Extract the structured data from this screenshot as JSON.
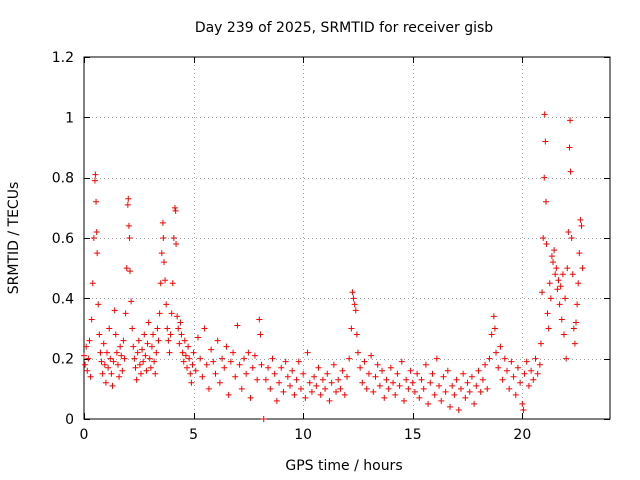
{
  "chart_data": {
    "type": "scatter",
    "title": "Day 239 of 2025, SRMTID for receiver gisb",
    "xlabel": "GPS time / hours",
    "ylabel": "SRMTID / TECUs",
    "xlim": [
      0,
      24
    ],
    "ylim": [
      0,
      1.2
    ],
    "x_ticks": [
      0,
      5,
      10,
      15,
      20
    ],
    "x_tick_labels": [
      "0",
      "5",
      "10",
      "15",
      "20"
    ],
    "y_ticks": [
      0,
      0.2,
      0.4,
      0.6,
      0.8,
      1.0,
      1.2
    ],
    "y_tick_labels": [
      "0",
      "0.2",
      "0.4",
      "0.6",
      "0.8",
      "1",
      "1.2"
    ],
    "grid": true,
    "marker": "+",
    "series": [
      {
        "name": "SRMTID",
        "color": "#ff0000",
        "points": [
          [
            0.0,
            0.21
          ],
          [
            0.05,
            0.18
          ],
          [
            0.1,
            0.24
          ],
          [
            0.15,
            0.16
          ],
          [
            0.2,
            0.2
          ],
          [
            0.25,
            0.26
          ],
          [
            0.3,
            0.14
          ],
          [
            0.35,
            0.33
          ],
          [
            0.4,
            0.45
          ],
          [
            0.45,
            0.6
          ],
          [
            0.5,
            0.79
          ],
          [
            0.52,
            0.81
          ],
          [
            0.55,
            0.72
          ],
          [
            0.58,
            0.62
          ],
          [
            0.6,
            0.55
          ],
          [
            0.65,
            0.38
          ],
          [
            0.7,
            0.28
          ],
          [
            0.75,
            0.22
          ],
          [
            0.8,
            0.19
          ],
          [
            0.85,
            0.15
          ],
          [
            0.9,
            0.25
          ],
          [
            0.95,
            0.18
          ],
          [
            1.0,
            0.12
          ],
          [
            1.05,
            0.22
          ],
          [
            1.1,
            0.17
          ],
          [
            1.15,
            0.3
          ],
          [
            1.2,
            0.2
          ],
          [
            1.25,
            0.15
          ],
          [
            1.3,
            0.11
          ],
          [
            1.35,
            0.19
          ],
          [
            1.4,
            0.36
          ],
          [
            1.45,
            0.28
          ],
          [
            1.5,
            0.22
          ],
          [
            1.55,
            0.18
          ],
          [
            1.6,
            0.14
          ],
          [
            1.65,
            0.24
          ],
          [
            1.7,
            0.21
          ],
          [
            1.75,
            0.16
          ],
          [
            1.8,
            0.26
          ],
          [
            1.85,
            0.2
          ],
          [
            1.9,
            0.35
          ],
          [
            1.95,
            0.5
          ],
          [
            2.0,
            0.71
          ],
          [
            2.02,
            0.73
          ],
          [
            2.05,
            0.64
          ],
          [
            2.08,
            0.6
          ],
          [
            2.1,
            0.49
          ],
          [
            2.15,
            0.39
          ],
          [
            2.2,
            0.3
          ],
          [
            2.25,
            0.24
          ],
          [
            2.3,
            0.2
          ],
          [
            2.35,
            0.17
          ],
          [
            2.4,
            0.13
          ],
          [
            2.45,
            0.22
          ],
          [
            2.5,
            0.26
          ],
          [
            2.55,
            0.18
          ],
          [
            2.6,
            0.15
          ],
          [
            2.65,
            0.23
          ],
          [
            2.7,
            0.19
          ],
          [
            2.75,
            0.28
          ],
          [
            2.8,
            0.21
          ],
          [
            2.85,
            0.16
          ],
          [
            2.9,
            0.25
          ],
          [
            2.95,
            0.32
          ],
          [
            3.0,
            0.2
          ],
          [
            3.05,
            0.17
          ],
          [
            3.1,
            0.24
          ],
          [
            3.15,
            0.28
          ],
          [
            3.2,
            0.19
          ],
          [
            3.25,
            0.15
          ],
          [
            3.3,
            0.22
          ],
          [
            3.35,
            0.3
          ],
          [
            3.4,
            0.26
          ],
          [
            3.45,
            0.35
          ],
          [
            3.5,
            0.45
          ],
          [
            3.55,
            0.55
          ],
          [
            3.6,
            0.65
          ],
          [
            3.62,
            0.6
          ],
          [
            3.65,
            0.52
          ],
          [
            3.7,
            0.46
          ],
          [
            3.75,
            0.38
          ],
          [
            3.8,
            0.3
          ],
          [
            3.85,
            0.26
          ],
          [
            3.9,
            0.22
          ],
          [
            3.95,
            0.28
          ],
          [
            4.0,
            0.35
          ],
          [
            4.05,
            0.45
          ],
          [
            4.1,
            0.6
          ],
          [
            4.15,
            0.7
          ],
          [
            4.18,
            0.69
          ],
          [
            4.2,
            0.58
          ],
          [
            4.25,
            0.34
          ],
          [
            4.3,
            0.3
          ],
          [
            4.35,
            0.25
          ],
          [
            4.4,
            0.32
          ],
          [
            4.45,
            0.28
          ],
          [
            4.5,
            0.22
          ],
          [
            4.55,
            0.19
          ],
          [
            4.6,
            0.26
          ],
          [
            4.65,
            0.21
          ],
          [
            4.7,
            0.17
          ],
          [
            4.75,
            0.24
          ],
          [
            4.8,
            0.2
          ],
          [
            4.85,
            0.15
          ],
          [
            4.9,
            0.12
          ],
          [
            4.95,
            0.18
          ],
          [
            5.0,
            0.22
          ],
          [
            5.1,
            0.16
          ],
          [
            5.2,
            0.27
          ],
          [
            5.3,
            0.2
          ],
          [
            5.4,
            0.14
          ],
          [
            5.5,
            0.3
          ],
          [
            5.6,
            0.18
          ],
          [
            5.7,
            0.1
          ],
          [
            5.8,
            0.23
          ],
          [
            5.9,
            0.19
          ],
          [
            6.0,
            0.15
          ],
          [
            6.1,
            0.26
          ],
          [
            6.2,
            0.12
          ],
          [
            6.3,
            0.2
          ],
          [
            6.4,
            0.17
          ],
          [
            6.5,
            0.24
          ],
          [
            6.6,
            0.08
          ],
          [
            6.7,
            0.19
          ],
          [
            6.8,
            0.22
          ],
          [
            6.9,
            0.14
          ],
          [
            7.0,
            0.31
          ],
          [
            7.1,
            0.18
          ],
          [
            7.2,
            0.1
          ],
          [
            7.3,
            0.2
          ],
          [
            7.4,
            0.15
          ],
          [
            7.5,
            0.22
          ],
          [
            7.6,
            0.07
          ],
          [
            7.7,
            0.17
          ],
          [
            7.8,
            0.21
          ],
          [
            7.9,
            0.13
          ],
          [
            8.0,
            0.33
          ],
          [
            8.05,
            0.28
          ],
          [
            8.1,
            0.18
          ],
          [
            8.2,
            0.0
          ],
          [
            8.3,
            0.13
          ],
          [
            8.4,
            0.17
          ],
          [
            8.5,
            0.1
          ],
          [
            8.6,
            0.2
          ],
          [
            8.7,
            0.15
          ],
          [
            8.8,
            0.06
          ],
          [
            8.9,
            0.12
          ],
          [
            9.0,
            0.17
          ],
          [
            9.1,
            0.09
          ],
          [
            9.2,
            0.19
          ],
          [
            9.3,
            0.14
          ],
          [
            9.4,
            0.11
          ],
          [
            9.5,
            0.16
          ],
          [
            9.6,
            0.08
          ],
          [
            9.7,
            0.13
          ],
          [
            9.8,
            0.19
          ],
          [
            9.9,
            0.1
          ],
          [
            10.0,
            0.15
          ],
          [
            10.1,
            0.07
          ],
          [
            10.2,
            0.22
          ],
          [
            10.3,
            0.12
          ],
          [
            10.4,
            0.09
          ],
          [
            10.5,
            0.14
          ],
          [
            10.6,
            0.11
          ],
          [
            10.7,
            0.17
          ],
          [
            10.8,
            0.08
          ],
          [
            10.9,
            0.13
          ],
          [
            11.0,
            0.1
          ],
          [
            11.1,
            0.15
          ],
          [
            11.2,
            0.06
          ],
          [
            11.3,
            0.12
          ],
          [
            11.4,
            0.18
          ],
          [
            11.5,
            0.09
          ],
          [
            11.6,
            0.13
          ],
          [
            11.7,
            0.1
          ],
          [
            11.8,
            0.16
          ],
          [
            11.9,
            0.08
          ],
          [
            12.0,
            0.14
          ],
          [
            12.1,
            0.2
          ],
          [
            12.2,
            0.3
          ],
          [
            12.25,
            0.42
          ],
          [
            12.3,
            0.4
          ],
          [
            12.35,
            0.38
          ],
          [
            12.4,
            0.36
          ],
          [
            12.45,
            0.28
          ],
          [
            12.5,
            0.22
          ],
          [
            12.6,
            0.17
          ],
          [
            12.7,
            0.12
          ],
          [
            12.8,
            0.19
          ],
          [
            12.9,
            0.1
          ],
          [
            13.0,
            0.15
          ],
          [
            13.1,
            0.21
          ],
          [
            13.2,
            0.09
          ],
          [
            13.3,
            0.14
          ],
          [
            13.4,
            0.18
          ],
          [
            13.5,
            0.11
          ],
          [
            13.6,
            0.16
          ],
          [
            13.7,
            0.07
          ],
          [
            13.8,
            0.13
          ],
          [
            13.9,
            0.1
          ],
          [
            14.0,
            0.17
          ],
          [
            14.1,
            0.12
          ],
          [
            14.2,
            0.08
          ],
          [
            14.3,
            0.15
          ],
          [
            14.4,
            0.11
          ],
          [
            14.5,
            0.19
          ],
          [
            14.6,
            0.06
          ],
          [
            14.7,
            0.13
          ],
          [
            14.8,
            0.1
          ],
          [
            14.9,
            0.16
          ],
          [
            15.0,
            0.12
          ],
          [
            15.1,
            0.09
          ],
          [
            15.2,
            0.15
          ],
          [
            15.3,
            0.07
          ],
          [
            15.4,
            0.13
          ],
          [
            15.5,
            0.1
          ],
          [
            15.6,
            0.18
          ],
          [
            15.7,
            0.05
          ],
          [
            15.8,
            0.12
          ],
          [
            15.9,
            0.15
          ],
          [
            16.0,
            0.08
          ],
          [
            16.1,
            0.2
          ],
          [
            16.2,
            0.11
          ],
          [
            16.3,
            0.06
          ],
          [
            16.4,
            0.14
          ],
          [
            16.5,
            0.09
          ],
          [
            16.6,
            0.16
          ],
          [
            16.7,
            0.04
          ],
          [
            16.8,
            0.11
          ],
          [
            16.9,
            0.08
          ],
          [
            17.0,
            0.13
          ],
          [
            17.1,
            0.03
          ],
          [
            17.2,
            0.1
          ],
          [
            17.3,
            0.15
          ],
          [
            17.4,
            0.07
          ],
          [
            17.5,
            0.12
          ],
          [
            17.6,
            0.09
          ],
          [
            17.7,
            0.14
          ],
          [
            17.8,
            0.05
          ],
          [
            17.9,
            0.11
          ],
          [
            18.0,
            0.16
          ],
          [
            18.1,
            0.09
          ],
          [
            18.2,
            0.13
          ],
          [
            18.3,
            0.18
          ],
          [
            18.4,
            0.1
          ],
          [
            18.5,
            0.2
          ],
          [
            18.6,
            0.28
          ],
          [
            18.7,
            0.34
          ],
          [
            18.75,
            0.3
          ],
          [
            18.8,
            0.22
          ],
          [
            18.9,
            0.17
          ],
          [
            19.0,
            0.24
          ],
          [
            19.1,
            0.13
          ],
          [
            19.2,
            0.2
          ],
          [
            19.3,
            0.16
          ],
          [
            19.4,
            0.1
          ],
          [
            19.5,
            0.19
          ],
          [
            19.6,
            0.14
          ],
          [
            19.7,
            0.08
          ],
          [
            19.8,
            0.17
          ],
          [
            19.9,
            0.12
          ],
          [
            20.0,
            0.05
          ],
          [
            20.05,
            0.03
          ],
          [
            20.1,
            0.15
          ],
          [
            20.2,
            0.19
          ],
          [
            20.3,
            0.11
          ],
          [
            20.4,
            0.16
          ],
          [
            20.5,
            0.13
          ],
          [
            20.6,
            0.2
          ],
          [
            20.7,
            0.15
          ],
          [
            20.8,
            0.18
          ],
          [
            20.85,
            0.25
          ],
          [
            20.9,
            0.42
          ],
          [
            20.95,
            0.6
          ],
          [
            21.0,
            0.8
          ],
          [
            21.02,
            1.01
          ],
          [
            21.05,
            0.92
          ],
          [
            21.08,
            0.72
          ],
          [
            21.1,
            0.58
          ],
          [
            21.15,
            0.35
          ],
          [
            21.2,
            0.3
          ],
          [
            21.25,
            0.45
          ],
          [
            21.3,
            0.4
          ],
          [
            21.35,
            0.54
          ],
          [
            21.4,
            0.52
          ],
          [
            21.45,
            0.56
          ],
          [
            21.5,
            0.48
          ],
          [
            21.55,
            0.5
          ],
          [
            21.6,
            0.43
          ],
          [
            21.65,
            0.46
          ],
          [
            21.7,
            0.38
          ],
          [
            21.75,
            0.44
          ],
          [
            21.8,
            0.33
          ],
          [
            21.85,
            0.48
          ],
          [
            21.9,
            0.28
          ],
          [
            21.95,
            0.4
          ],
          [
            22.0,
            0.2
          ],
          [
            22.05,
            0.5
          ],
          [
            22.1,
            0.62
          ],
          [
            22.15,
            0.9
          ],
          [
            22.18,
            0.99
          ],
          [
            22.2,
            0.82
          ],
          [
            22.25,
            0.6
          ],
          [
            22.3,
            0.48
          ],
          [
            22.35,
            0.3
          ],
          [
            22.4,
            0.25
          ],
          [
            22.45,
            0.32
          ],
          [
            22.5,
            0.38
          ],
          [
            22.55,
            0.45
          ],
          [
            22.6,
            0.55
          ],
          [
            22.65,
            0.66
          ],
          [
            22.7,
            0.64
          ],
          [
            22.75,
            0.5
          ]
        ]
      }
    ]
  }
}
